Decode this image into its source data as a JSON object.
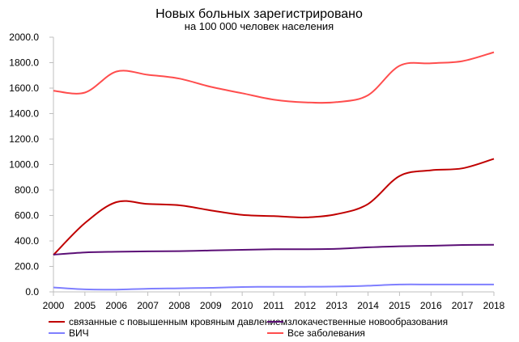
{
  "chart_data": {
    "type": "line",
    "title": "Новых больных зарегистрировано",
    "subtitle": "на 100 000 человек населения",
    "xlabel": "",
    "ylabel": "",
    "categories": [
      "2000",
      "2005",
      "2006",
      "2007",
      "2008",
      "2009",
      "2010",
      "2011",
      "2012",
      "2013",
      "2014",
      "2015",
      "2016",
      "2017",
      "2018"
    ],
    "ylim": [
      0,
      2000
    ],
    "yticks": [
      "0.0",
      "200.0",
      "400.0",
      "600.0",
      "800.0",
      "1000.0",
      "1200.0",
      "1400.0",
      "1600.0",
      "1800.0",
      "2000.0"
    ],
    "grid": false,
    "legend_position": "bottom",
    "series": [
      {
        "name": "связанные с  повышенным кровяным давлением",
        "color": "#c00000",
        "values": [
          290,
          540,
          705,
          690,
          680,
          640,
          605,
          595,
          585,
          610,
          690,
          910,
          955,
          970,
          1045
        ]
      },
      {
        "name": "злокачественные новообразования",
        "color": "#5b0f76",
        "values": [
          292,
          310,
          315,
          318,
          320,
          325,
          330,
          335,
          335,
          338,
          350,
          358,
          362,
          368,
          370
        ]
      },
      {
        "name": "ВИЧ",
        "color": "#7f7fff",
        "values": [
          35,
          20,
          18,
          25,
          28,
          32,
          38,
          40,
          40,
          42,
          48,
          58,
          58,
          58,
          58
        ]
      },
      {
        "name": "Все заболевания",
        "color": "#ff4d4d",
        "values": [
          1580,
          1565,
          1730,
          1705,
          1675,
          1610,
          1560,
          1510,
          1488,
          1490,
          1545,
          1775,
          1795,
          1812,
          1882
        ]
      }
    ]
  }
}
